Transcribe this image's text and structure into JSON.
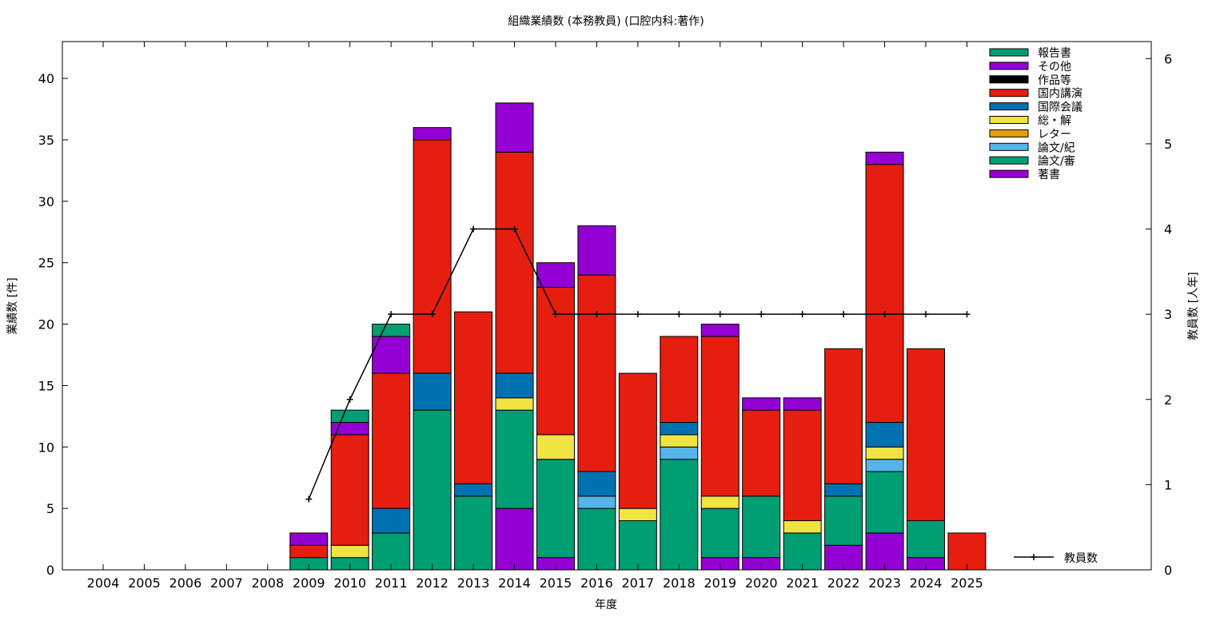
{
  "chart_data": {
    "type": "bar",
    "title": "組織業績数 (本務教員) (口腔内科:著作)",
    "xlabel": "年度",
    "ylabel": "業績数 [件]",
    "y2label": "教員数 [人年]",
    "ylim": [
      0,
      43
    ],
    "y2lim": [
      0,
      6.2
    ],
    "yticks": [
      0,
      5,
      10,
      15,
      20,
      25,
      30,
      35,
      40
    ],
    "y2ticks": [
      0,
      1,
      2,
      3,
      4,
      5,
      6
    ],
    "grid": false,
    "legend_position": "top-right",
    "categories": [
      "2004",
      "2005",
      "2006",
      "2007",
      "2008",
      "2009",
      "2010",
      "2011",
      "2012",
      "2013",
      "2014",
      "2015",
      "2016",
      "2017",
      "2018",
      "2019",
      "2020",
      "2021",
      "2022",
      "2023",
      "2024",
      "2025"
    ],
    "series": [
      {
        "name": "著書",
        "color": "#9400d3",
        "values": [
          0,
          0,
          0,
          0,
          0,
          0,
          0,
          0,
          0,
          0,
          5,
          1,
          0,
          0,
          0,
          1,
          1,
          0,
          2,
          3,
          1,
          0
        ]
      },
      {
        "name": "論文/審",
        "color": "#009e73",
        "values": [
          0,
          0,
          0,
          0,
          0,
          1,
          1,
          3,
          13,
          6,
          8,
          8,
          5,
          4,
          9,
          4,
          5,
          3,
          4,
          5,
          3,
          0
        ]
      },
      {
        "name": "論文/紀",
        "color": "#56b4e9",
        "values": [
          0,
          0,
          0,
          0,
          0,
          0,
          0,
          0,
          0,
          0,
          0,
          0,
          1,
          0,
          1,
          0,
          0,
          0,
          0,
          1,
          0,
          0
        ]
      },
      {
        "name": "レター",
        "color": "#e69f00",
        "values": [
          0,
          0,
          0,
          0,
          0,
          0,
          0,
          0,
          0,
          0,
          0,
          0,
          0,
          0,
          0,
          0,
          0,
          0,
          0,
          0,
          0,
          0
        ]
      },
      {
        "name": "総・解",
        "color": "#f0e442",
        "values": [
          0,
          0,
          0,
          0,
          0,
          0,
          1,
          0,
          0,
          0,
          1,
          2,
          0,
          1,
          1,
          1,
          0,
          1,
          0,
          1,
          0,
          0
        ]
      },
      {
        "name": "国際会議",
        "color": "#0072b2",
        "values": [
          0,
          0,
          0,
          0,
          0,
          0,
          0,
          2,
          3,
          1,
          2,
          0,
          2,
          0,
          1,
          0,
          0,
          0,
          1,
          2,
          0,
          0
        ]
      },
      {
        "name": "国内講演",
        "color": "#e51e10",
        "values": [
          0,
          0,
          0,
          0,
          0,
          1,
          9,
          11,
          19,
          14,
          18,
          12,
          16,
          11,
          7,
          13,
          7,
          9,
          11,
          21,
          14,
          3
        ]
      },
      {
        "name": "作品等",
        "color": "#000000",
        "values": [
          0,
          0,
          0,
          0,
          0,
          0,
          0,
          0,
          0,
          0,
          0,
          0,
          0,
          0,
          0,
          0,
          0,
          0,
          0,
          0,
          0,
          0
        ]
      },
      {
        "name": "その他",
        "color": "#9400d3",
        "values": [
          0,
          0,
          0,
          0,
          0,
          1,
          1,
          3,
          1,
          0,
          4,
          2,
          4,
          0,
          0,
          1,
          1,
          1,
          0,
          1,
          0,
          0
        ]
      },
      {
        "name": "報告書",
        "color": "#009e73",
        "values": [
          0,
          0,
          0,
          0,
          0,
          0,
          1,
          1,
          0,
          0,
          0,
          0,
          0,
          0,
          0,
          0,
          0,
          0,
          0,
          0,
          0,
          0
        ]
      }
    ],
    "line_series": {
      "name": "教員数",
      "axis": "y2",
      "color": "#000000",
      "x": [
        "2009",
        "2010",
        "2011",
        "2012",
        "2013",
        "2014",
        "2015",
        "2016",
        "2017",
        "2018",
        "2019",
        "2020",
        "2021",
        "2022",
        "2023",
        "2024",
        "2025"
      ],
      "values": [
        0.83,
        2,
        3,
        3,
        4,
        4,
        3,
        3,
        3,
        3,
        3,
        3,
        3,
        3,
        3,
        3,
        3
      ]
    },
    "legend_order": [
      "報告書",
      "その他",
      "作品等",
      "国内講演",
      "国際会議",
      "総・解",
      "レター",
      "論文/紀",
      "論文/審",
      "著書"
    ]
  }
}
